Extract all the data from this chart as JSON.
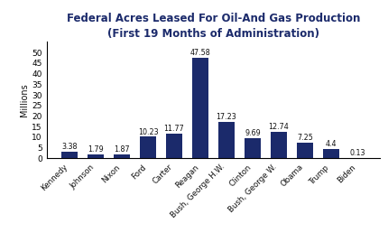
{
  "title_line1": "Federal Acres Leased For Oil-And Gas Production",
  "title_line2": "(First 19 Months of Administration)",
  "ylabel": "Millions",
  "categories": [
    "Kennedy",
    "Johnson",
    "Nixon",
    "Ford",
    "Carter",
    "Reagan",
    "Bush, George H.W.",
    "Clinton",
    "Bush, George W.",
    "Obama",
    "Trump",
    "Biden"
  ],
  "values": [
    3.38,
    1.79,
    1.87,
    10.23,
    11.77,
    47.58,
    17.23,
    9.69,
    12.74,
    7.25,
    4.4,
    0.13
  ],
  "bar_color": "#1b2a6b",
  "label_color": "#111111",
  "background_color": "#ffffff",
  "ylim": [
    0,
    55
  ],
  "yticks": [
    0,
    5,
    10,
    15,
    20,
    25,
    30,
    35,
    40,
    45,
    50
  ],
  "title_fontsize": 8.5,
  "ylabel_fontsize": 7,
  "tick_fontsize": 6.5,
  "value_label_fontsize": 5.8,
  "xtick_fontsize": 6.2
}
